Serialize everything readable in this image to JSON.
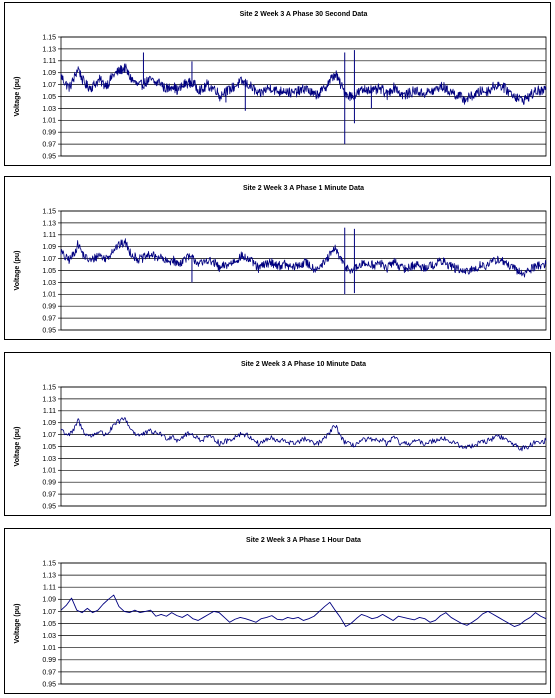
{
  "chart_data": [
    {
      "type": "line",
      "title": "Site 2 Week 3 A Phase 30 Second Data",
      "ylabel": "Voltage (pu)",
      "xlabel": "",
      "ylim": [
        0.95,
        1.15
      ],
      "yticks": [
        "1.15",
        "1.13",
        "1.11",
        "1.09",
        "1.07",
        "1.05",
        "1.03",
        "1.01",
        "0.99",
        "0.97",
        "0.95"
      ],
      "grid": "horizontal",
      "color": "#000080",
      "series": [
        {
          "sample_points": [
            1.085,
            1.072,
            1.065,
            1.08,
            1.098,
            1.078,
            1.068,
            1.065,
            1.072,
            1.078,
            1.07,
            1.072,
            1.085,
            1.09,
            1.095,
            1.098,
            1.083,
            1.075,
            1.068,
            1.07,
            1.075,
            1.078,
            1.072,
            1.075,
            1.065,
            1.063,
            1.07,
            1.06,
            1.065,
            1.072,
            1.073,
            1.07,
            1.063,
            1.06,
            1.07,
            1.065,
            1.063,
            1.05,
            1.058,
            1.06,
            1.065,
            1.07,
            1.075,
            1.072,
            1.068,
            1.062,
            1.052,
            1.058,
            1.063,
            1.065,
            1.06,
            1.058,
            1.062,
            1.057,
            1.055,
            1.058,
            1.06,
            1.065,
            1.058,
            1.052,
            1.055,
            1.06,
            1.07,
            1.08,
            1.088,
            1.072,
            1.058,
            1.052,
            1.05,
            1.055,
            1.06,
            1.062,
            1.063,
            1.058,
            1.063,
            1.06,
            1.052,
            1.063,
            1.066,
            1.055,
            1.052,
            1.055,
            1.058,
            1.06,
            1.055,
            1.056,
            1.058,
            1.06,
            1.065,
            1.067,
            1.06,
            1.058,
            1.053,
            1.05,
            1.045,
            1.048,
            1.052,
            1.055,
            1.06,
            1.058,
            1.062,
            1.068,
            1.07,
            1.066,
            1.06,
            1.055,
            1.05,
            1.045,
            1.045,
            1.05,
            1.055,
            1.06,
            1.058,
            1.062
          ],
          "spikes": [
            [
              0.17,
              1.124,
              1.071
            ],
            [
              0.27,
              1.109,
              1.066
            ],
            [
              0.34,
              1.04,
              1.065
            ],
            [
              0.38,
              1.068,
              1.026
            ],
            [
              0.585,
              1.124,
              0.97
            ],
            [
              0.605,
              1.128,
              1.005
            ],
            [
              0.64,
              1.065,
              1.03
            ]
          ]
        }
      ]
    },
    {
      "type": "line",
      "title": "Site 2 Week 3 A Phase 1 Minute Data",
      "ylabel": "Voltage (pu)",
      "xlabel": "",
      "ylim": [
        0.95,
        1.15
      ],
      "yticks": [
        "1.15",
        "1.13",
        "1.11",
        "1.09",
        "1.07",
        "1.05",
        "1.03",
        "1.01",
        "0.99",
        "0.97",
        "0.95"
      ],
      "grid": "horizontal",
      "color": "#000080",
      "series": [
        {
          "sample_points": [
            1.082,
            1.071,
            1.068,
            1.078,
            1.095,
            1.078,
            1.07,
            1.066,
            1.072,
            1.077,
            1.07,
            1.073,
            1.084,
            1.09,
            1.094,
            1.097,
            1.082,
            1.074,
            1.069,
            1.07,
            1.074,
            1.077,
            1.072,
            1.074,
            1.066,
            1.064,
            1.069,
            1.061,
            1.064,
            1.071,
            1.072,
            1.069,
            1.063,
            1.061,
            1.069,
            1.064,
            1.062,
            1.052,
            1.058,
            1.06,
            1.064,
            1.069,
            1.074,
            1.071,
            1.067,
            1.062,
            1.053,
            1.058,
            1.062,
            1.064,
            1.06,
            1.058,
            1.061,
            1.057,
            1.055,
            1.058,
            1.06,
            1.064,
            1.058,
            1.053,
            1.056,
            1.06,
            1.069,
            1.079,
            1.087,
            1.071,
            1.058,
            1.053,
            1.051,
            1.055,
            1.06,
            1.061,
            1.062,
            1.058,
            1.062,
            1.06,
            1.053,
            1.062,
            1.065,
            1.055,
            1.053,
            1.055,
            1.058,
            1.06,
            1.055,
            1.056,
            1.058,
            1.06,
            1.064,
            1.066,
            1.06,
            1.058,
            1.053,
            1.051,
            1.046,
            1.049,
            1.052,
            1.055,
            1.06,
            1.058,
            1.061,
            1.067,
            1.069,
            1.065,
            1.06,
            1.055,
            1.051,
            1.046,
            1.046,
            1.05,
            1.055,
            1.06,
            1.058,
            1.061
          ],
          "spikes": [
            [
              0.585,
              1.122,
              1.01
            ],
            [
              0.605,
              1.12,
              1.012
            ],
            [
              0.27,
              1.075,
              1.03
            ]
          ]
        }
      ]
    },
    {
      "type": "line",
      "title": "Site 2 Week 3 A Phase 10 Minute Data",
      "ylabel": "Voltage (pu)",
      "xlabel": "",
      "ylim": [
        0.95,
        1.15
      ],
      "yticks": [
        "1.15",
        "1.13",
        "1.11",
        "1.09",
        "1.07",
        "1.05",
        "1.03",
        "1.01",
        "0.99",
        "0.97",
        "0.95"
      ],
      "grid": "horizontal",
      "color": "#000080",
      "series": [
        {
          "sample_points": [
            1.08,
            1.072,
            1.07,
            1.077,
            1.095,
            1.078,
            1.07,
            1.067,
            1.072,
            1.076,
            1.07,
            1.073,
            1.082,
            1.09,
            1.094,
            1.097,
            1.082,
            1.074,
            1.069,
            1.07,
            1.073,
            1.076,
            1.072,
            1.073,
            1.066,
            1.064,
            1.068,
            1.061,
            1.064,
            1.07,
            1.071,
            1.069,
            1.063,
            1.061,
            1.068,
            1.064,
            1.062,
            1.055,
            1.058,
            1.06,
            1.064,
            1.068,
            1.072,
            1.07,
            1.066,
            1.062,
            1.054,
            1.058,
            1.062,
            1.064,
            1.06,
            1.058,
            1.061,
            1.057,
            1.055,
            1.058,
            1.06,
            1.063,
            1.058,
            1.054,
            1.056,
            1.06,
            1.068,
            1.078,
            1.085,
            1.07,
            1.058,
            1.054,
            1.052,
            1.055,
            1.06,
            1.061,
            1.062,
            1.058,
            1.062,
            1.06,
            1.054,
            1.062,
            1.064,
            1.055,
            1.054,
            1.055,
            1.058,
            1.06,
            1.055,
            1.056,
            1.058,
            1.06,
            1.063,
            1.065,
            1.06,
            1.058,
            1.054,
            1.052,
            1.047,
            1.05,
            1.052,
            1.055,
            1.06,
            1.058,
            1.061,
            1.066,
            1.068,
            1.064,
            1.06,
            1.055,
            1.052,
            1.047,
            1.047,
            1.05,
            1.055,
            1.06,
            1.058,
            1.06
          ],
          "spikes": []
        }
      ]
    },
    {
      "type": "line",
      "title": "Site 2 Week 3 A Phase 1 Hour Data",
      "ylabel": "Voltage (pu)",
      "xlabel": "",
      "ylim": [
        0.95,
        1.15
      ],
      "yticks": [
        "1.15",
        "1.13",
        "1.11",
        "1.09",
        "1.07",
        "1.05",
        "1.03",
        "1.01",
        "0.99",
        "0.97",
        "0.95"
      ],
      "grid": "horizontal",
      "color": "#000080",
      "series": [
        {
          "sample_points": [
            1.072,
            1.08,
            1.092,
            1.072,
            1.068,
            1.075,
            1.068,
            1.072,
            1.082,
            1.09,
            1.097,
            1.078,
            1.07,
            1.068,
            1.072,
            1.068,
            1.07,
            1.072,
            1.062,
            1.065,
            1.062,
            1.068,
            1.063,
            1.06,
            1.065,
            1.058,
            1.055,
            1.06,
            1.065,
            1.07,
            1.068,
            1.06,
            1.052,
            1.057,
            1.06,
            1.058,
            1.055,
            1.052,
            1.058,
            1.06,
            1.063,
            1.057,
            1.056,
            1.06,
            1.058,
            1.06,
            1.055,
            1.058,
            1.062,
            1.07,
            1.078,
            1.085,
            1.072,
            1.06,
            1.045,
            1.05,
            1.058,
            1.065,
            1.062,
            1.058,
            1.06,
            1.065,
            1.06,
            1.055,
            1.062,
            1.06,
            1.058,
            1.056,
            1.06,
            1.058,
            1.052,
            1.055,
            1.063,
            1.068,
            1.06,
            1.055,
            1.05,
            1.047,
            1.052,
            1.058,
            1.066,
            1.07,
            1.065,
            1.06,
            1.055,
            1.05,
            1.045,
            1.048,
            1.055,
            1.06,
            1.068,
            1.062,
            1.058
          ],
          "spikes": []
        }
      ]
    }
  ]
}
